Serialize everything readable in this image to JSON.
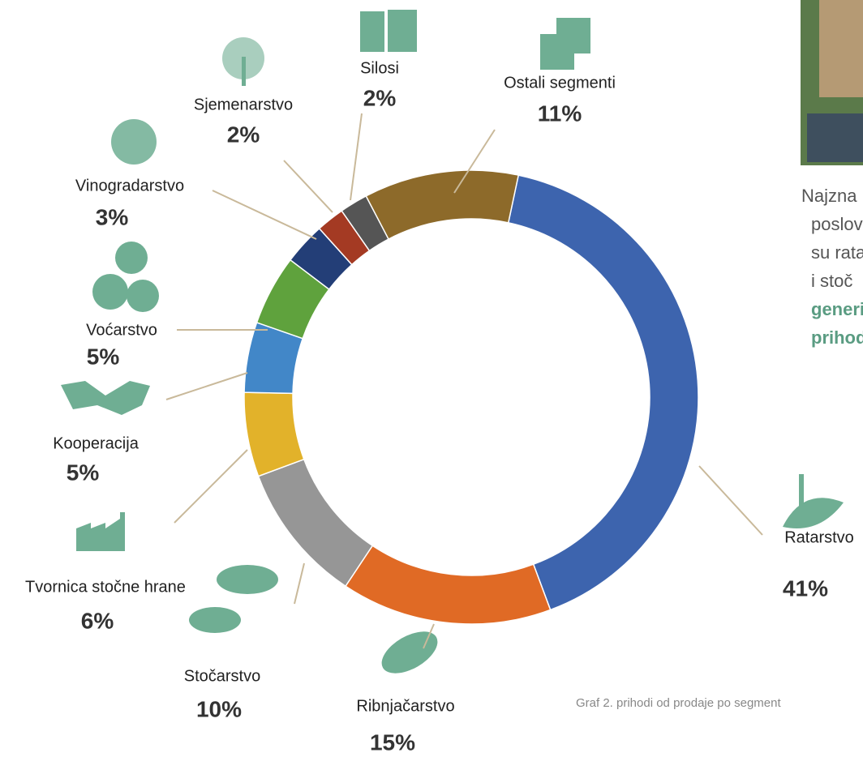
{
  "chart_data": {
    "type": "donut",
    "categories": [
      "Ratarstvo",
      "Ribnjačarstvo",
      "Stočarstvo",
      "Tvornica stočne hrane",
      "Kooperacija",
      "Voćarstvo",
      "Vinogradarstvo",
      "Sjemenarstvo",
      "Silosi",
      "Ostali segmenti"
    ],
    "values": [
      41,
      15,
      10,
      6,
      5,
      5,
      3,
      2,
      2,
      11
    ],
    "value_labels": [
      "41%",
      "15%",
      "10%",
      "6%",
      "5%",
      "5%",
      "3%",
      "2%",
      "2%",
      "11%"
    ],
    "colors": [
      "#3d64ae",
      "#e06a25",
      "#969696",
      "#e2b22a",
      "#4287c8",
      "#5fa23d",
      "#233e77",
      "#a43a23",
      "#555555",
      "#8d6a2a"
    ]
  },
  "side_text": {
    "lines": [
      "Najzna",
      "poslov",
      "su rata",
      "i stoč"
    ],
    "bold_lines": [
      "generi",
      "prihod"
    ],
    "caption": "Graf 2. prihodi od prodaje po segment"
  }
}
